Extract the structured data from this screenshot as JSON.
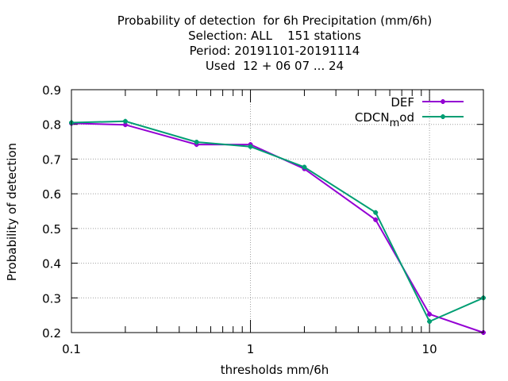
{
  "chart_data": {
    "type": "line",
    "title_lines": [
      "Probability of detection  for 6h Precipitation (mm/6h)",
      "Selection: ALL    151 stations",
      "Period: 20191101-20191114",
      "Used  12 + 06 07 ... 24"
    ],
    "xlabel": "thresholds mm/6h",
    "ylabel": "Probability of detection",
    "x_scale": "log",
    "xlim": [
      0.1,
      20
    ],
    "ylim": [
      0.2,
      0.9
    ],
    "x_ticks": [
      {
        "value": 0.1,
        "label": "0.1"
      },
      {
        "value": 1,
        "label": "1"
      },
      {
        "value": 10,
        "label": "10"
      }
    ],
    "y_ticks": [
      {
        "value": 0.2,
        "label": "0.2"
      },
      {
        "value": 0.3,
        "label": "0.3"
      },
      {
        "value": 0.4,
        "label": "0.4"
      },
      {
        "value": 0.5,
        "label": "0.5"
      },
      {
        "value": 0.6,
        "label": "0.6"
      },
      {
        "value": 0.7,
        "label": "0.7"
      },
      {
        "value": 0.8,
        "label": "0.8"
      },
      {
        "value": 0.9,
        "label": "0.9"
      }
    ],
    "grid": true,
    "legend_position": "top-right",
    "x": [
      0.1,
      0.2,
      0.5,
      1,
      2,
      5,
      10,
      20
    ],
    "series": [
      {
        "name": "DEF",
        "color": "#9400d3",
        "values": [
          0.803,
          0.799,
          0.742,
          0.742,
          0.672,
          0.525,
          0.253,
          0.2
        ]
      },
      {
        "name_main": "CDCN",
        "name_sub": "m",
        "name_tail": "od",
        "color": "#009e73",
        "values": [
          0.805,
          0.809,
          0.749,
          0.736,
          0.677,
          0.546,
          0.232,
          0.3
        ]
      }
    ]
  }
}
